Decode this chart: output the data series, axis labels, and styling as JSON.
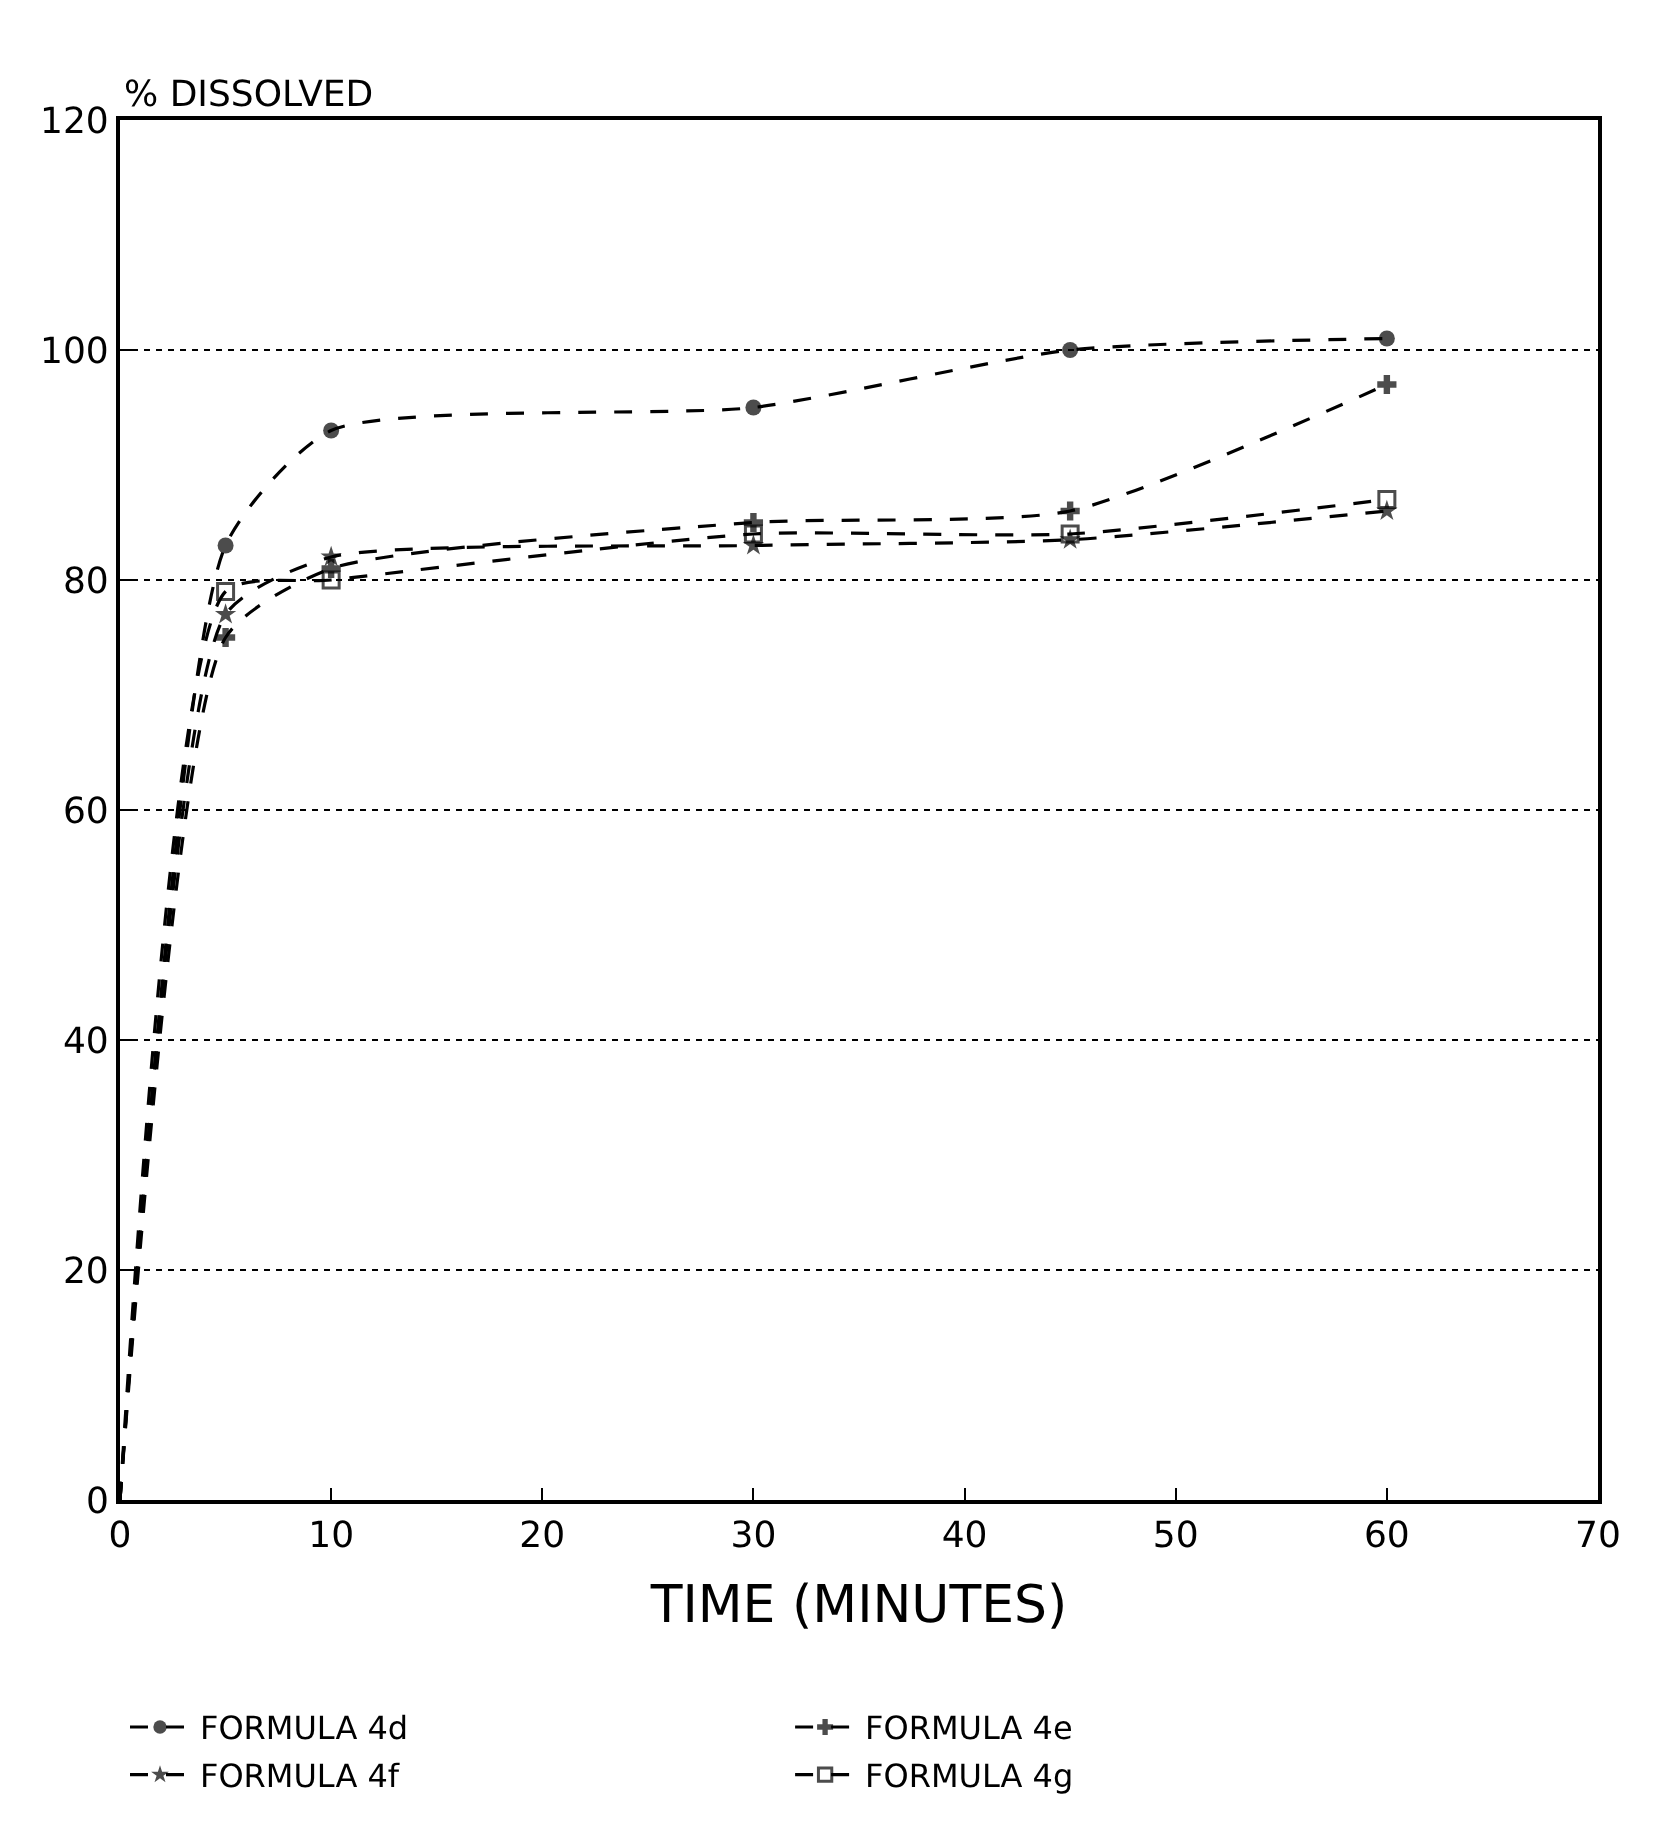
{
  "chart_data": {
    "type": "line",
    "ylabel": "% DISSOLVED",
    "xlabel": "TIME (MINUTES)",
    "xlim": [
      0,
      70
    ],
    "xticks": [
      0,
      10,
      20,
      30,
      40,
      50,
      60,
      70
    ],
    "ylim": [
      0,
      120
    ],
    "yticks": [
      0,
      20,
      40,
      60,
      80,
      100,
      120
    ],
    "grid": "y",
    "legend": "bottom",
    "line_style": "dashed",
    "series": [
      {
        "name": "FORMULA 4d",
        "color": "#000000",
        "marker": "circle",
        "x": [
          0,
          5,
          10,
          30,
          45,
          60
        ],
        "values": [
          0,
          83,
          93,
          95,
          100,
          101
        ]
      },
      {
        "name": "FORMULA 4e",
        "color": "#000000",
        "marker": "cross",
        "x": [
          0,
          5,
          10,
          30,
          45,
          60
        ],
        "values": [
          0,
          75,
          81,
          85,
          86,
          97
        ]
      },
      {
        "name": "FORMULA 4f",
        "color": "#000000",
        "marker": "star",
        "x": [
          0,
          5,
          10,
          30,
          45,
          60
        ],
        "values": [
          0,
          77,
          82,
          83,
          83.5,
          86
        ]
      },
      {
        "name": "FORMULA 4g",
        "color": "#000000",
        "marker": "square",
        "x": [
          0,
          5,
          10,
          30,
          45,
          60
        ],
        "values": [
          0,
          79,
          80,
          84,
          84,
          87
        ]
      }
    ]
  }
}
